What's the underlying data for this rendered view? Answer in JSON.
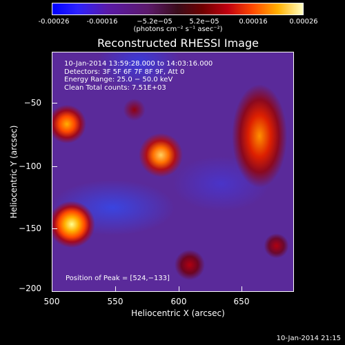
{
  "colorbar": {
    "ticks": [
      "-0.00026",
      "-0.00016",
      "−5.2e−05",
      "5.2e−05",
      "0.00016",
      "0.00026"
    ],
    "units": "(photons cm⁻² s⁻¹ asec⁻²)"
  },
  "chart_data": {
    "type": "heatmap",
    "title": "Reconstructed RHESSI Image",
    "xlabel": "Heliocentric X (arcsec)",
    "ylabel": "Heliocentric Y (arcsec)",
    "xlim": [
      500,
      690
    ],
    "ylim": [
      -200,
      -20
    ],
    "x_ticks": [
      "500",
      "550",
      "600",
      "650"
    ],
    "y_ticks": [
      "−50",
      "−100",
      "−150",
      "−200"
    ],
    "colorbar_range": [
      -0.00026,
      0.00026
    ],
    "annotations": [
      "10-Jan-2014 13:59:28.000 to 14:03:16.000",
      "Detectors: 3F 5F 6F 7F 8F 9F, Att 0",
      "Energy Range: 25.0 − 50.0 keV",
      "Clean     Total counts: 7.51E+03"
    ],
    "peak_label": "Position of Peak = [524,−133]",
    "peak": [
      524,
      -133
    ]
  },
  "footer": {
    "timestamp": "10-Jan-2014 21:15"
  }
}
